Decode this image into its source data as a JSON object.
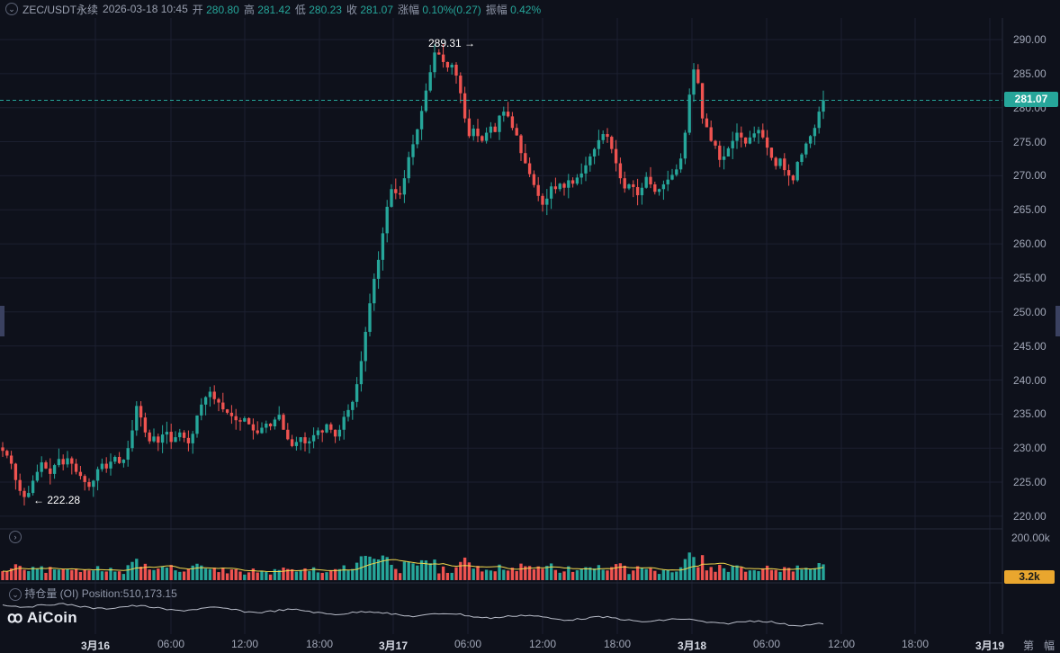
{
  "header": {
    "symbol": "ZEC/USDT永续",
    "datetime": "2026-03-18 10:45",
    "open_label": "开",
    "open": "280.80",
    "high_label": "高",
    "high": "281.42",
    "low_label": "低",
    "low": "280.23",
    "close_label": "收",
    "close": "281.07",
    "change_label": "涨幅",
    "change": "0.10%(0.27)",
    "amplitude_label": "振幅",
    "amplitude": "0.42%"
  },
  "price_axis": [
    "290.00",
    "285.00",
    "280.00",
    "275.00",
    "270.00",
    "265.00",
    "260.00",
    "255.00",
    "250.00",
    "245.00",
    "240.00",
    "235.00",
    "230.00",
    "225.00",
    "220.00"
  ],
  "last_price_tag": "281.07",
  "annotations": {
    "high": "289.31",
    "low": "222.28",
    "high_arrow": "→",
    "low_arrow": "←"
  },
  "volume_pane": {
    "axis_max": "200.00k",
    "last_volume_tag": "3.2k"
  },
  "oi_pane": {
    "title": "持仓量 (OI)",
    "value_text": "Position:510,173.15"
  },
  "logo": {
    "text": "AiCoin"
  },
  "time_axis": [
    "3月16",
    "06:00",
    "12:00",
    "18:00",
    "3月17",
    "06:00",
    "12:00",
    "18:00",
    "3月18",
    "06:00",
    "12:00",
    "18:00",
    "3月19",
    "第",
    "幅"
  ],
  "colors": {
    "up": "#26a69a",
    "down": "#ef5350",
    "background": "#0e111b",
    "volume_ma": "#f0d74e",
    "last_price": "#26a69a",
    "oi_line": "#b8bcc8"
  },
  "chart_data": {
    "type": "candlestick",
    "ylim": [
      218,
      292
    ],
    "high": 289.31,
    "low": 222.28,
    "last": 281.07,
    "closes": [
      229.5,
      228.8,
      227.6,
      225.2,
      223.6,
      222.7,
      223.3,
      225.1,
      226.4,
      227.8,
      226.9,
      226.1,
      227.4,
      228.3,
      227.5,
      228.4,
      227.6,
      226.4,
      225.8,
      224.9,
      224.2,
      225.1,
      226.8,
      227.6,
      226.9,
      227.9,
      228.6,
      227.7,
      228.2,
      229.9,
      232.5,
      236.1,
      234.4,
      232.2,
      230.9,
      231.6,
      230.7,
      231.9,
      232.3,
      230.8,
      231.5,
      232.2,
      231.4,
      230.6,
      232.0,
      234.7,
      236.3,
      237.4,
      238.2,
      237.1,
      236.6,
      235.6,
      235.1,
      234.6,
      234.0,
      233.8,
      234.3,
      233.4,
      232.5,
      232.1,
      232.9,
      233.5,
      233.1,
      234.1,
      234.8,
      232.6,
      231.2,
      230.2,
      230.8,
      231.5,
      230.6,
      230.9,
      231.8,
      232.5,
      232.2,
      233.4,
      232.6,
      231.6,
      232.6,
      234.5,
      235.5,
      236.7,
      239.3,
      242.7,
      247.0,
      251.2,
      254.8,
      257.6,
      261.5,
      265.4,
      268.0,
      267.4,
      267.2,
      269.6,
      272.7,
      274.6,
      276.8,
      279.5,
      282.5,
      285.2,
      288.1,
      287.8,
      286.7,
      285.9,
      286.3,
      284.7,
      282.1,
      278.4,
      275.8,
      276.9,
      275.8,
      275.1,
      276.3,
      277.2,
      276.4,
      278.8,
      279.4,
      278.7,
      277.0,
      275.9,
      273.3,
      271.8,
      270.2,
      268.6,
      267.0,
      265.7,
      266.6,
      268.4,
      268.0,
      268.8,
      268.2,
      269.3,
      268.8,
      269.7,
      270.3,
      271.5,
      272.8,
      273.9,
      275.2,
      276.1,
      275.7,
      273.9,
      271.8,
      269.6,
      268.1,
      268.7,
      268.3,
      267.1,
      268.2,
      269.8,
      268.7,
      267.6,
      268.0,
      268.7,
      269.4,
      270.1,
      270.9,
      272.5,
      276.3,
      281.9,
      285.6,
      283.6,
      278.4,
      277.1,
      275.1,
      274.4,
      272.3,
      272.8,
      274.0,
      275.1,
      276.3,
      275.6,
      274.7,
      275.6,
      276.2,
      276.7,
      275.6,
      274.1,
      272.6,
      271.4,
      272.5,
      270.8,
      270.0,
      269.3,
      272.0,
      273.1,
      274.7,
      275.8,
      277.0,
      279.4,
      281.07
    ]
  }
}
